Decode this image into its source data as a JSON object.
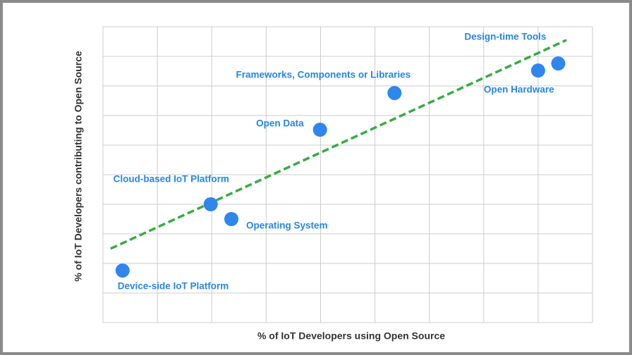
{
  "chart_data": {
    "type": "scatter",
    "x_label": "% of IoT Developers using Open Source",
    "y_label": "% of IoT Developers contributing to Open Source",
    "categories": [
      "Device-side IoT Platform",
      "Cloud-based IoT Platform",
      "Operating System",
      "Open Data",
      "Frameworks, Components or Libraries",
      "Open Hardware",
      "Design-time Tools"
    ],
    "x": [
      0.36,
      1.98,
      2.36,
      3.99,
      5.36,
      8.0,
      8.37
    ],
    "values": [
      1.76,
      4.0,
      3.5,
      6.52,
      7.76,
      8.52,
      8.76
    ],
    "color": "#2f86ec",
    "label_color": "#2a86e0",
    "trendline": {
      "x": [
        0.14,
        8.52
      ],
      "y": [
        2.5,
        9.55
      ],
      "color": "#3aaa47"
    },
    "xlim": [
      0,
      9
    ],
    "ylim": [
      0,
      10
    ],
    "grid": true
  }
}
